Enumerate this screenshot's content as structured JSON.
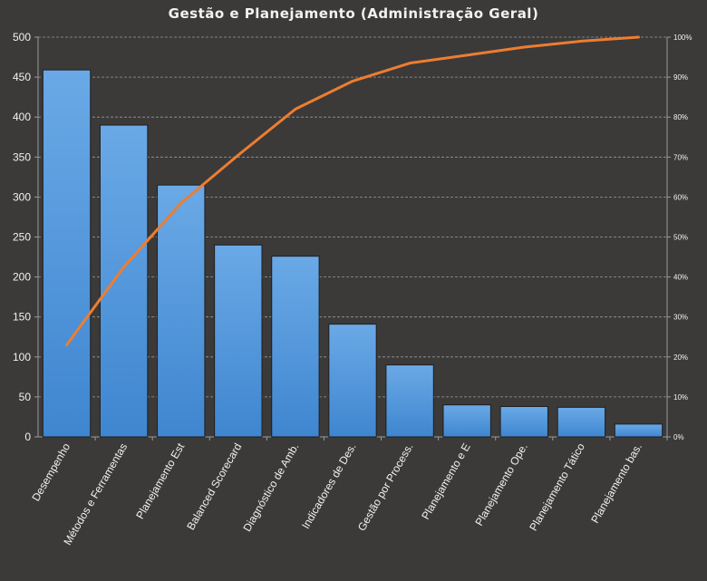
{
  "chart_data": {
    "type": "bar",
    "title": "Gestão e Planejamento (Administração Geral)",
    "categories": [
      "Desempenho",
      "Métodos e Ferramentas",
      "Planejamento Est",
      "Balanced Scorecard",
      "Diagnóstico de Amb.",
      "Indicadores de Des.",
      "Gestão por Process.",
      "Planejamento e E",
      "Planejamento Ope.",
      "Planejamento Tático",
      "Planejamento bas."
    ],
    "series": [
      {
        "type": "bar",
        "values": [
          459,
          390,
          315,
          240,
          226,
          141,
          90,
          40,
          38,
          37,
          16
        ],
        "color": "#4f93d8"
      },
      {
        "type": "line",
        "axis": "secondary",
        "values": [
          0.23,
          0.425,
          0.585,
          0.705,
          0.82,
          0.89,
          0.935,
          0.955,
          0.975,
          0.99,
          1.0
        ],
        "color": "#ed7d31"
      }
    ],
    "ylim": [
      0,
      500
    ],
    "yticks": [
      0,
      50,
      100,
      150,
      200,
      250,
      300,
      350,
      400,
      450,
      500
    ],
    "y2lim": [
      0,
      1
    ],
    "y2ticks": [
      "0%",
      "10%",
      "20%",
      "30%",
      "40%",
      "50%",
      "60%",
      "70%",
      "80%",
      "90%",
      "100%"
    ],
    "grid": true,
    "legend": "none"
  },
  "colors": {
    "background": "#3b3a39",
    "grid": "#9a9a9a",
    "text": "#f2f2f2",
    "bar": "#4f93d8",
    "line": "#ed7d31"
  }
}
